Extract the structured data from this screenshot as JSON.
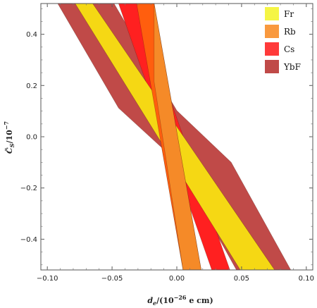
{
  "chart_data": {
    "type": "area",
    "title": "",
    "xlabel": {
      "main": "d",
      "sub": "e",
      "mid": "/(10",
      "sup": "−26",
      "tail": "e cm)"
    },
    "ylabel": {
      "main": "C̃",
      "sub": "S",
      "mid": "/10",
      "sup": "−7"
    },
    "xlim": [
      -0.105,
      0.105
    ],
    "ylim": [
      -0.52,
      0.52
    ],
    "xticks": [
      -0.1,
      -0.05,
      0.0,
      0.05,
      0.1
    ],
    "xtick_labels": [
      "−0.10",
      "−0.05",
      "0.00",
      "0.05",
      "0.10"
    ],
    "yticks": [
      -0.4,
      -0.2,
      0.0,
      0.2,
      0.4
    ],
    "ytick_labels": [
      "−0.4",
      "−0.2",
      "0.0",
      "0.2",
      "0.4"
    ],
    "grid": false,
    "legend_position": "top-right",
    "series": [
      {
        "name": "YbF",
        "color": "#c04a48",
        "polygon": [
          [
            -0.092,
            0.52
          ],
          [
            -0.0485,
            0.52
          ],
          [
            -0.0,
            0.102
          ],
          [
            0.042,
            -0.1
          ],
          [
            0.088,
            -0.52
          ],
          [
            0.046,
            -0.52
          ],
          [
            -0.001,
            -0.092
          ],
          [
            -0.045,
            0.112
          ]
        ]
      },
      {
        "name": "Rb",
        "color": "#f28e34",
        "polygon": [
          [
            -0.031,
            0.52
          ],
          [
            -0.0175,
            0.52
          ],
          [
            0.0188,
            -0.52
          ],
          [
            0.0048,
            -0.52
          ]
        ]
      },
      {
        "name": "Cs",
        "color": "#ff2020",
        "polygon": [
          [
            -0.045,
            0.52
          ],
          [
            -0.031,
            0.52
          ],
          [
            0.041,
            -0.52
          ],
          [
            0.027,
            -0.52
          ]
        ]
      },
      {
        "name": "Fr",
        "color": "#f5d814",
        "polygon": [
          [
            -0.0785,
            0.52
          ],
          [
            -0.065,
            0.52
          ],
          [
            0.0755,
            -0.52
          ],
          [
            0.049,
            -0.52
          ]
        ]
      }
    ],
    "overlaps": [
      {
        "between": [
          "Rb",
          "Cs"
        ],
        "color": "#ff5e0e",
        "polygon": [
          [
            -0.031,
            0.52
          ],
          [
            -0.0175,
            0.52
          ],
          [
            0.0188,
            -0.52
          ],
          [
            0.0048,
            -0.52
          ]
        ]
      },
      {
        "between": [
          "Rb",
          "Fr"
        ],
        "color": "#f58a28",
        "polygon": [
          [
            -0.0175,
            0.215
          ],
          [
            -0.0175,
            0.52
          ],
          [
            0.0188,
            -0.52
          ],
          [
            0.0048,
            -0.52
          ]
        ]
      }
    ],
    "legend": [
      {
        "name": "Fr",
        "color": "#f5f545"
      },
      {
        "name": "Rb",
        "color": "#f9993e"
      },
      {
        "name": "Cs",
        "color": "#ff3a3a"
      },
      {
        "name": "YbF",
        "color": "#c04a48"
      }
    ]
  }
}
